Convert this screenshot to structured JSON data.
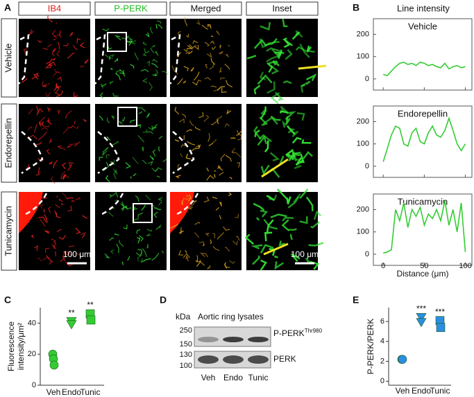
{
  "panel_a": {
    "label": "A",
    "columns": [
      "IB4",
      "P-PERK",
      "Merged",
      "Inset"
    ],
    "rows": [
      "Vehicle",
      "Endorepellin",
      "Tunicamycin"
    ],
    "scale_bars": [
      "100 μm",
      "100 μm"
    ]
  },
  "panel_b": {
    "label": "B",
    "title": "Line intensity",
    "xlabel": "Distance (μm)",
    "xlim": [
      -12,
      108
    ],
    "xticks": [
      0,
      50,
      100
    ],
    "charts": [
      {
        "type": "line",
        "title": "Vehicle",
        "color": "#33cc33",
        "ylim": [
          -50,
          270
        ],
        "yticks": [
          0,
          100,
          200
        ],
        "x": [
          0,
          5,
          10,
          15,
          20,
          25,
          30,
          35,
          40,
          45,
          50,
          55,
          60,
          65,
          70,
          75,
          80,
          85,
          90,
          95,
          100
        ],
        "values": [
          20,
          15,
          35,
          55,
          70,
          75,
          65,
          70,
          60,
          75,
          70,
          60,
          65,
          55,
          50,
          70,
          45,
          55,
          60,
          50,
          55
        ]
      },
      {
        "type": "line",
        "title": "Endorepellin",
        "color": "#33cc33",
        "ylim": [
          -50,
          270
        ],
        "yticks": [
          0,
          100,
          200
        ],
        "x": [
          0,
          5,
          10,
          15,
          20,
          25,
          30,
          35,
          40,
          45,
          50,
          55,
          60,
          65,
          70,
          75,
          80,
          85,
          90,
          95,
          100
        ],
        "values": [
          20,
          80,
          140,
          180,
          170,
          100,
          90,
          150,
          170,
          110,
          100,
          150,
          180,
          140,
          130,
          160,
          215,
          160,
          100,
          70,
          100
        ]
      },
      {
        "type": "line",
        "title": "Tunicamycin",
        "color": "#33cc33",
        "ylim": [
          -50,
          270
        ],
        "yticks": [
          0,
          100,
          200
        ],
        "x": [
          0,
          5,
          10,
          15,
          20,
          25,
          30,
          35,
          40,
          45,
          50,
          55,
          60,
          65,
          70,
          75,
          80,
          85,
          90,
          95,
          100
        ],
        "values": [
          5,
          10,
          20,
          200,
          150,
          230,
          120,
          200,
          170,
          210,
          130,
          180,
          160,
          200,
          150,
          240,
          130,
          200,
          100,
          230,
          10
        ]
      }
    ]
  },
  "panel_c": {
    "label": "C",
    "type": "scatter",
    "ylabel": [
      "Fluorescence",
      "intensity/μm²"
    ],
    "categories": [
      "Veh",
      "Endo",
      "Tunic"
    ],
    "ylim": [
      0,
      50
    ],
    "yticks": [
      0,
      20,
      40
    ],
    "groups": [
      {
        "values": [
          20,
          17,
          13
        ],
        "marker": "circle",
        "color": "#33cc33"
      },
      {
        "values": [
          41,
          39
        ],
        "marker": "triangle",
        "color": "#33cc33",
        "annotation": "**"
      },
      {
        "values": [
          46,
          42
        ],
        "marker": "square",
        "color": "#33cc33",
        "annotation": "**"
      }
    ]
  },
  "panel_d": {
    "label": "D",
    "unit": "kDa",
    "title": "Aortic ring lysates",
    "bands": [
      {
        "label": "P-PERK",
        "superscript": "Thr980",
        "markers": [
          250,
          150
        ]
      },
      {
        "label": "PERK",
        "markers": [
          130,
          100
        ]
      }
    ],
    "lanes": [
      "Veh",
      "Endo",
      "Tunic"
    ]
  },
  "panel_e": {
    "label": "E",
    "type": "scatter",
    "ylabel": [
      "P-PERK/PERK"
    ],
    "categories": [
      "Veh",
      "Endo",
      "Tunic"
    ],
    "ylim": [
      -0.4,
      7.4
    ],
    "yticks": [
      0,
      2,
      4,
      6
    ],
    "groups": [
      {
        "values": [
          2.2,
          2.2
        ],
        "marker": "circle",
        "color": "#2b8ee0"
      },
      {
        "values": [
          6.4,
          5.9
        ],
        "marker": "triangle",
        "color": "#2b8ee0",
        "annotation": "***"
      },
      {
        "values": [
          6.1,
          5.4
        ],
        "marker": "square",
        "color": "#2b8ee0",
        "annotation": "***"
      }
    ]
  }
}
